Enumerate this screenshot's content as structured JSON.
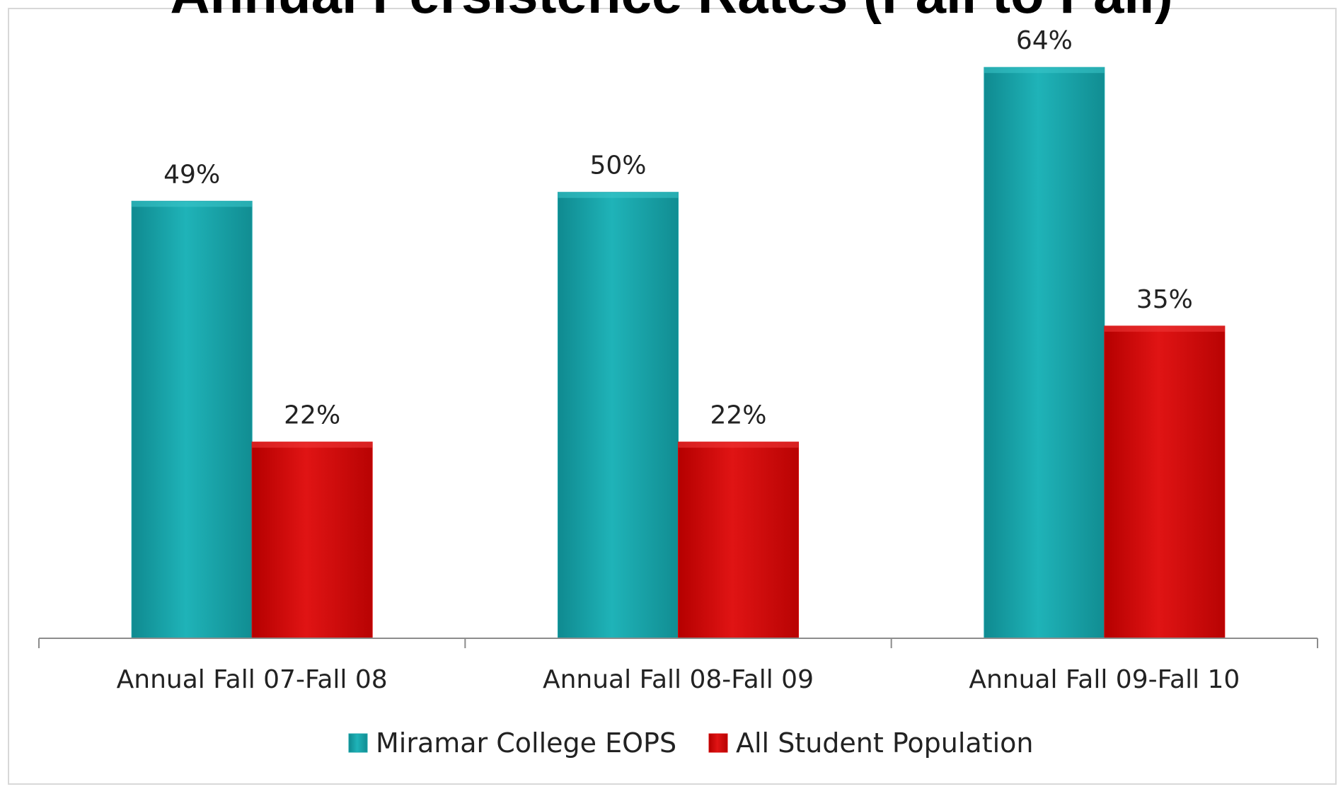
{
  "chart_data": {
    "type": "bar",
    "title": "Annual Persistence Rates (Fall to Fall)",
    "categories": [
      "Annual Fall 07-Fall 08",
      "Annual Fall 08-Fall 09",
      "Annual Fall 09-Fall 10"
    ],
    "series": [
      {
        "name": "Miramar College EOPS",
        "values": [
          49,
          50,
          64
        ],
        "labels": [
          "49%",
          "50%",
          "64%"
        ],
        "color": "#1aa3a8"
      },
      {
        "name": "All Student Population",
        "values": [
          22,
          22,
          35
        ],
        "labels": [
          "22%",
          "22%",
          "35%"
        ],
        "color": "#d40a0a"
      }
    ],
    "ylim": [
      0,
      66
    ],
    "grid": false,
    "legend": "bottom",
    "xlabel": "",
    "ylabel": ""
  }
}
